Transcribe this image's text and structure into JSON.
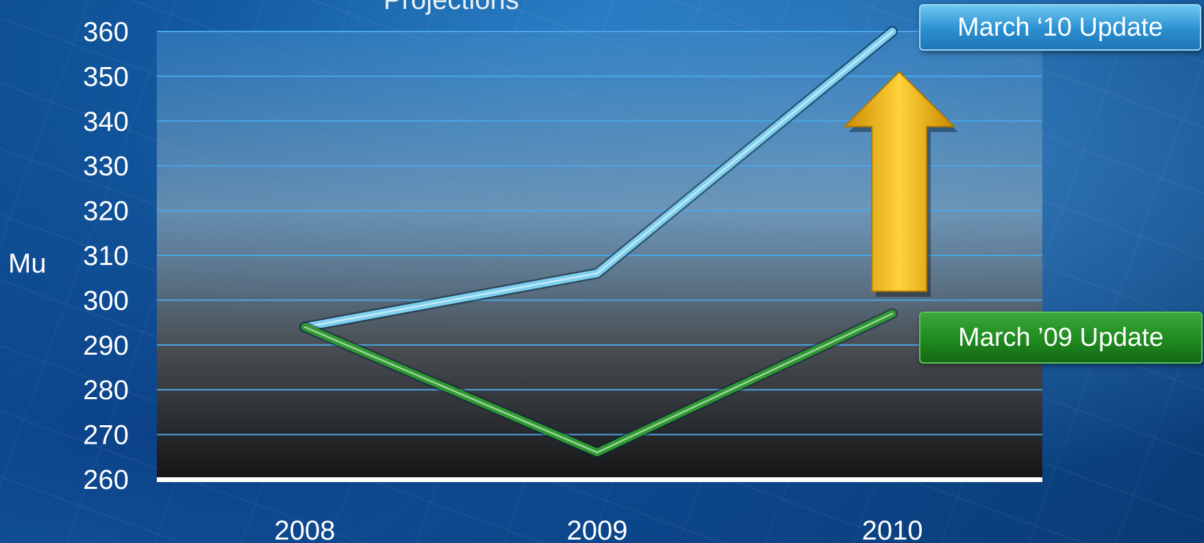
{
  "title_partial": "Projections",
  "chart_data": {
    "type": "line",
    "categories": [
      "2008",
      "2009",
      "2010"
    ],
    "ylabel": "Mu",
    "xlabel": "",
    "ylim": [
      260,
      360
    ],
    "yticks": [
      260,
      270,
      280,
      290,
      300,
      310,
      320,
      330,
      340,
      350,
      360
    ],
    "grid": true,
    "series": [
      {
        "name": "March ‘10 Update",
        "values": [
          294,
          306,
          360
        ],
        "color": "#7fd0f0"
      },
      {
        "name": "March ’09 Update",
        "values": [
          294,
          266,
          297
        ],
        "color": "#2f9a2f"
      }
    ],
    "annotation": {
      "type": "up-arrow",
      "color": "#f2b705",
      "from_value": 302,
      "to_value": 351,
      "category": "2010"
    }
  },
  "legend": {
    "blue_label": "March ‘10 Update",
    "green_label": "March ’09 Update"
  }
}
